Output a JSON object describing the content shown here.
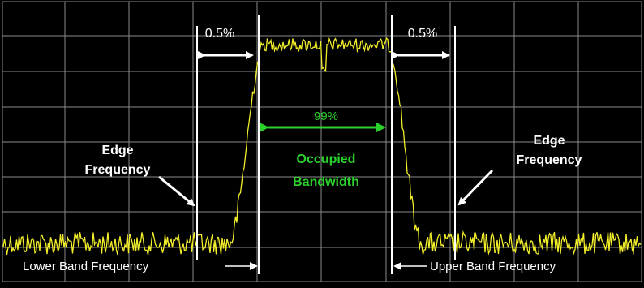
{
  "diagram": {
    "left_pct_label": "0.5%",
    "right_pct_label": "0.5%",
    "center_pct_label": "99%",
    "occupied_line1": "Occupied",
    "occupied_line2": "Bandwidth",
    "left_edge_line1": "Edge",
    "left_edge_line2": "Frequency",
    "right_edge_line1": "Edge",
    "right_edge_line2": "Frequency",
    "lower_band_label": "Lower Band Frequency",
    "upper_band_label": "Upper Band Frequency"
  },
  "colors": {
    "background": "#000000",
    "grid": "#8a8a8a",
    "trace": "#f2ef2a",
    "annotation": "#ffffff",
    "occupied": "#2bd12b"
  }
}
